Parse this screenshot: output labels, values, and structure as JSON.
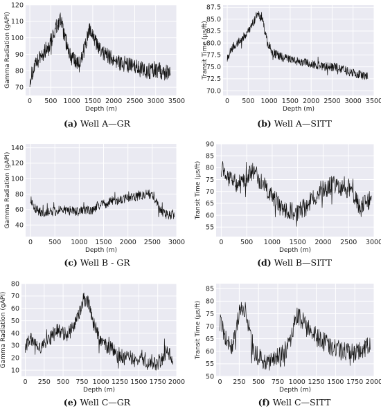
{
  "chart_data": [
    {
      "type": "line",
      "caption_letter": "(a)",
      "caption_text": " Well A—GR",
      "xlabel": "Depth (m)",
      "ylabel": "Gamma Radiation (gAPI)",
      "xlim": [
        -100,
        3500
      ],
      "ylim": [
        65,
        120
      ],
      "xticks": [
        0,
        500,
        1000,
        1500,
        2000,
        2500,
        3000,
        3500
      ],
      "yticks": [
        70,
        80,
        90,
        100,
        110,
        120
      ],
      "grid": true,
      "x_range": [
        0,
        3350
      ],
      "values": [
        75,
        82,
        88,
        92,
        97,
        104,
        112,
        100,
        90,
        85,
        84,
        95,
        105,
        98,
        92,
        90,
        88,
        87,
        85,
        84,
        83,
        82,
        81,
        80,
        80,
        81,
        80,
        79,
        80
      ]
    },
    {
      "type": "line",
      "caption_letter": "(b)",
      "caption_text": " Well A—SITT",
      "xlabel": "Depth (m)",
      "ylabel": "Transit Time (μs/ft)",
      "xlim": [
        -100,
        3500
      ],
      "ylim": [
        69,
        88
      ],
      "xticks": [
        0,
        500,
        1000,
        1500,
        2000,
        2500,
        3000,
        3500
      ],
      "yticks": [
        70.0,
        72.5,
        75.0,
        77.5,
        80.0,
        82.5,
        85.0,
        87.5
      ],
      "grid": true,
      "x_range": [
        0,
        3350
      ],
      "values": [
        77,
        79,
        80,
        81,
        82,
        84,
        86,
        85,
        80,
        78,
        77.5,
        77,
        76.8,
        76.5,
        76.2,
        76,
        75.8,
        75.6,
        75.4,
        75.2,
        75,
        75,
        74.8,
        74.5,
        74,
        73.8,
        73.5,
        73.2,
        73
      ]
    },
    {
      "type": "line",
      "caption_letter": "(c)",
      "caption_text": " Well B - GR",
      "xlabel": "Depth (m)",
      "ylabel": "Gamma Radiation (gAPI)",
      "xlim": [
        -100,
        3000
      ],
      "ylim": [
        25,
        145
      ],
      "xticks": [
        0,
        500,
        1000,
        1500,
        2000,
        2500,
        3000
      ],
      "yticks": [
        40,
        60,
        80,
        100,
        120,
        140
      ],
      "grid": true,
      "x_range": [
        0,
        2950
      ],
      "values": [
        75,
        60,
        57,
        56,
        57,
        58,
        60,
        59,
        58,
        57,
        58,
        60,
        58,
        65,
        67,
        68,
        72,
        72,
        73,
        75,
        76,
        77,
        79,
        80,
        78,
        62,
        55,
        52,
        55
      ]
    },
    {
      "type": "line",
      "caption_letter": "(d)",
      "caption_text": " Well B—SITT",
      "xlabel": "Depth (m)",
      "ylabel": "Transit Time (μs/ft)",
      "xlim": [
        -100,
        3000
      ],
      "ylim": [
        51,
        90
      ],
      "xticks": [
        0,
        500,
        1000,
        1500,
        2000,
        2500,
        3000
      ],
      "yticks": [
        55,
        60,
        65,
        70,
        75,
        80,
        85,
        90
      ],
      "grid": true,
      "x_range": [
        0,
        2950
      ],
      "values": [
        80,
        77,
        74,
        73,
        73,
        76,
        79,
        75,
        72,
        70,
        68,
        63,
        62,
        62,
        61,
        62,
        64,
        67,
        69,
        71,
        72,
        73,
        72,
        70,
        72,
        67,
        63,
        65,
        67
      ]
    },
    {
      "type": "line",
      "caption_letter": "(e)",
      "caption_text": " Well C—GR",
      "xlabel": "Depth (m)",
      "ylabel": "Gamma Radiation (gAPI)",
      "xlim": [
        -50,
        2000
      ],
      "ylim": [
        5,
        80
      ],
      "xticks": [
        0,
        250,
        500,
        750,
        1000,
        1250,
        1500,
        1750,
        2000
      ],
      "yticks": [
        10,
        20,
        30,
        40,
        50,
        60,
        70,
        80
      ],
      "grid": true,
      "x_range": [
        0,
        1950
      ],
      "values": [
        30,
        35,
        32,
        28,
        33,
        37,
        42,
        40,
        38,
        45,
        52,
        68,
        65,
        48,
        35,
        30,
        28,
        25,
        22,
        20,
        20,
        18,
        21,
        18,
        17,
        15,
        19,
        28,
        15
      ]
    },
    {
      "type": "line",
      "caption_letter": "(f)",
      "caption_text": " Well C—SITT",
      "xlabel": "Depth (m)",
      "ylabel": "Transit Time (μs/ft)",
      "xlim": [
        -50,
        2000
      ],
      "ylim": [
        50,
        87
      ],
      "xticks": [
        0,
        250,
        500,
        750,
        1000,
        1250,
        1500,
        1750,
        2000
      ],
      "yticks": [
        50,
        55,
        60,
        65,
        70,
        75,
        80,
        85
      ],
      "grid": true,
      "x_range": [
        0,
        1950
      ],
      "values": [
        72,
        66,
        60,
        70,
        78,
        75,
        62,
        58,
        57,
        56,
        57,
        58,
        60,
        62,
        74,
        73,
        70,
        68,
        66,
        64,
        63,
        62,
        61,
        60,
        60,
        59,
        60,
        61,
        62
      ]
    }
  ]
}
